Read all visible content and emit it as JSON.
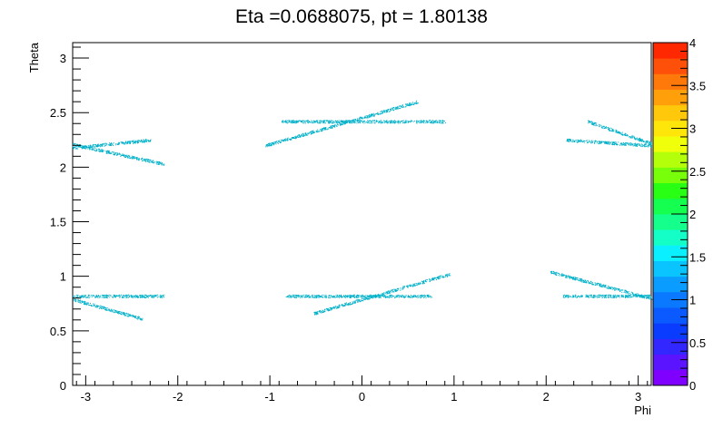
{
  "chart_data": {
    "type": "heatmap",
    "title": "Eta =0.0688075, pt = 1.80138",
    "xlabel": "Phi",
    "ylabel": "Theta",
    "xlim": [
      -3.1416,
      3.1416
    ],
    "ylim": [
      0,
      3.1416
    ],
    "x_ticks": [
      -3,
      -2,
      -1,
      0,
      1,
      2,
      3
    ],
    "y_ticks": [
      0,
      0.5,
      1,
      1.5,
      2,
      2.5,
      3
    ],
    "colorbar": {
      "range": [
        0,
        4
      ],
      "ticks": [
        "0",
        "0.5",
        "1",
        "1.5",
        "2",
        "2.5",
        "3",
        "3.5",
        "4"
      ],
      "colors": [
        "#8000ff",
        "#5a14ff",
        "#3228ff",
        "#0a3cff",
        "#0a5aff",
        "#0a78ff",
        "#0a9cff",
        "#0ac4ff",
        "#0af0ff",
        "#14ffc8",
        "#14ff8c",
        "#14ff50",
        "#28ff14",
        "#78ff0a",
        "#b4ff0a",
        "#f0ff0a",
        "#ffe60a",
        "#ffc80a",
        "#ffa00a",
        "#ff780a",
        "#ff500a",
        "#ff2800"
      ]
    },
    "point_color": "#00b0c8",
    "segments": [
      {
        "x": [
          -3.14,
          -2.3
        ],
        "y": [
          2.18,
          2.25
        ]
      },
      {
        "x": [
          -3.14,
          -2.15
        ],
        "y": [
          2.21,
          2.03
        ]
      },
      {
        "x": [
          -3.14,
          -2.15
        ],
        "y": [
          0.82,
          0.82
        ]
      },
      {
        "x": [
          -3.14,
          -2.38
        ],
        "y": [
          0.79,
          0.61
        ]
      },
      {
        "x": [
          -1.05,
          0.6
        ],
        "y": [
          2.2,
          2.6
        ]
      },
      {
        "x": [
          -0.88,
          0.9
        ],
        "y": [
          2.42,
          2.42
        ]
      },
      {
        "x": [
          -0.82,
          0.75
        ],
        "y": [
          0.82,
          0.82
        ]
      },
      {
        "x": [
          -0.53,
          0.95
        ],
        "y": [
          0.66,
          1.02
        ]
      },
      {
        "x": [
          2.05,
          3.14
        ],
        "y": [
          1.04,
          0.8
        ]
      },
      {
        "x": [
          2.18,
          3.14
        ],
        "y": [
          0.82,
          0.82
        ]
      },
      {
        "x": [
          2.22,
          3.14
        ],
        "y": [
          2.25,
          2.2
        ]
      },
      {
        "x": [
          2.45,
          3.14
        ],
        "y": [
          2.42,
          2.22
        ]
      }
    ]
  }
}
